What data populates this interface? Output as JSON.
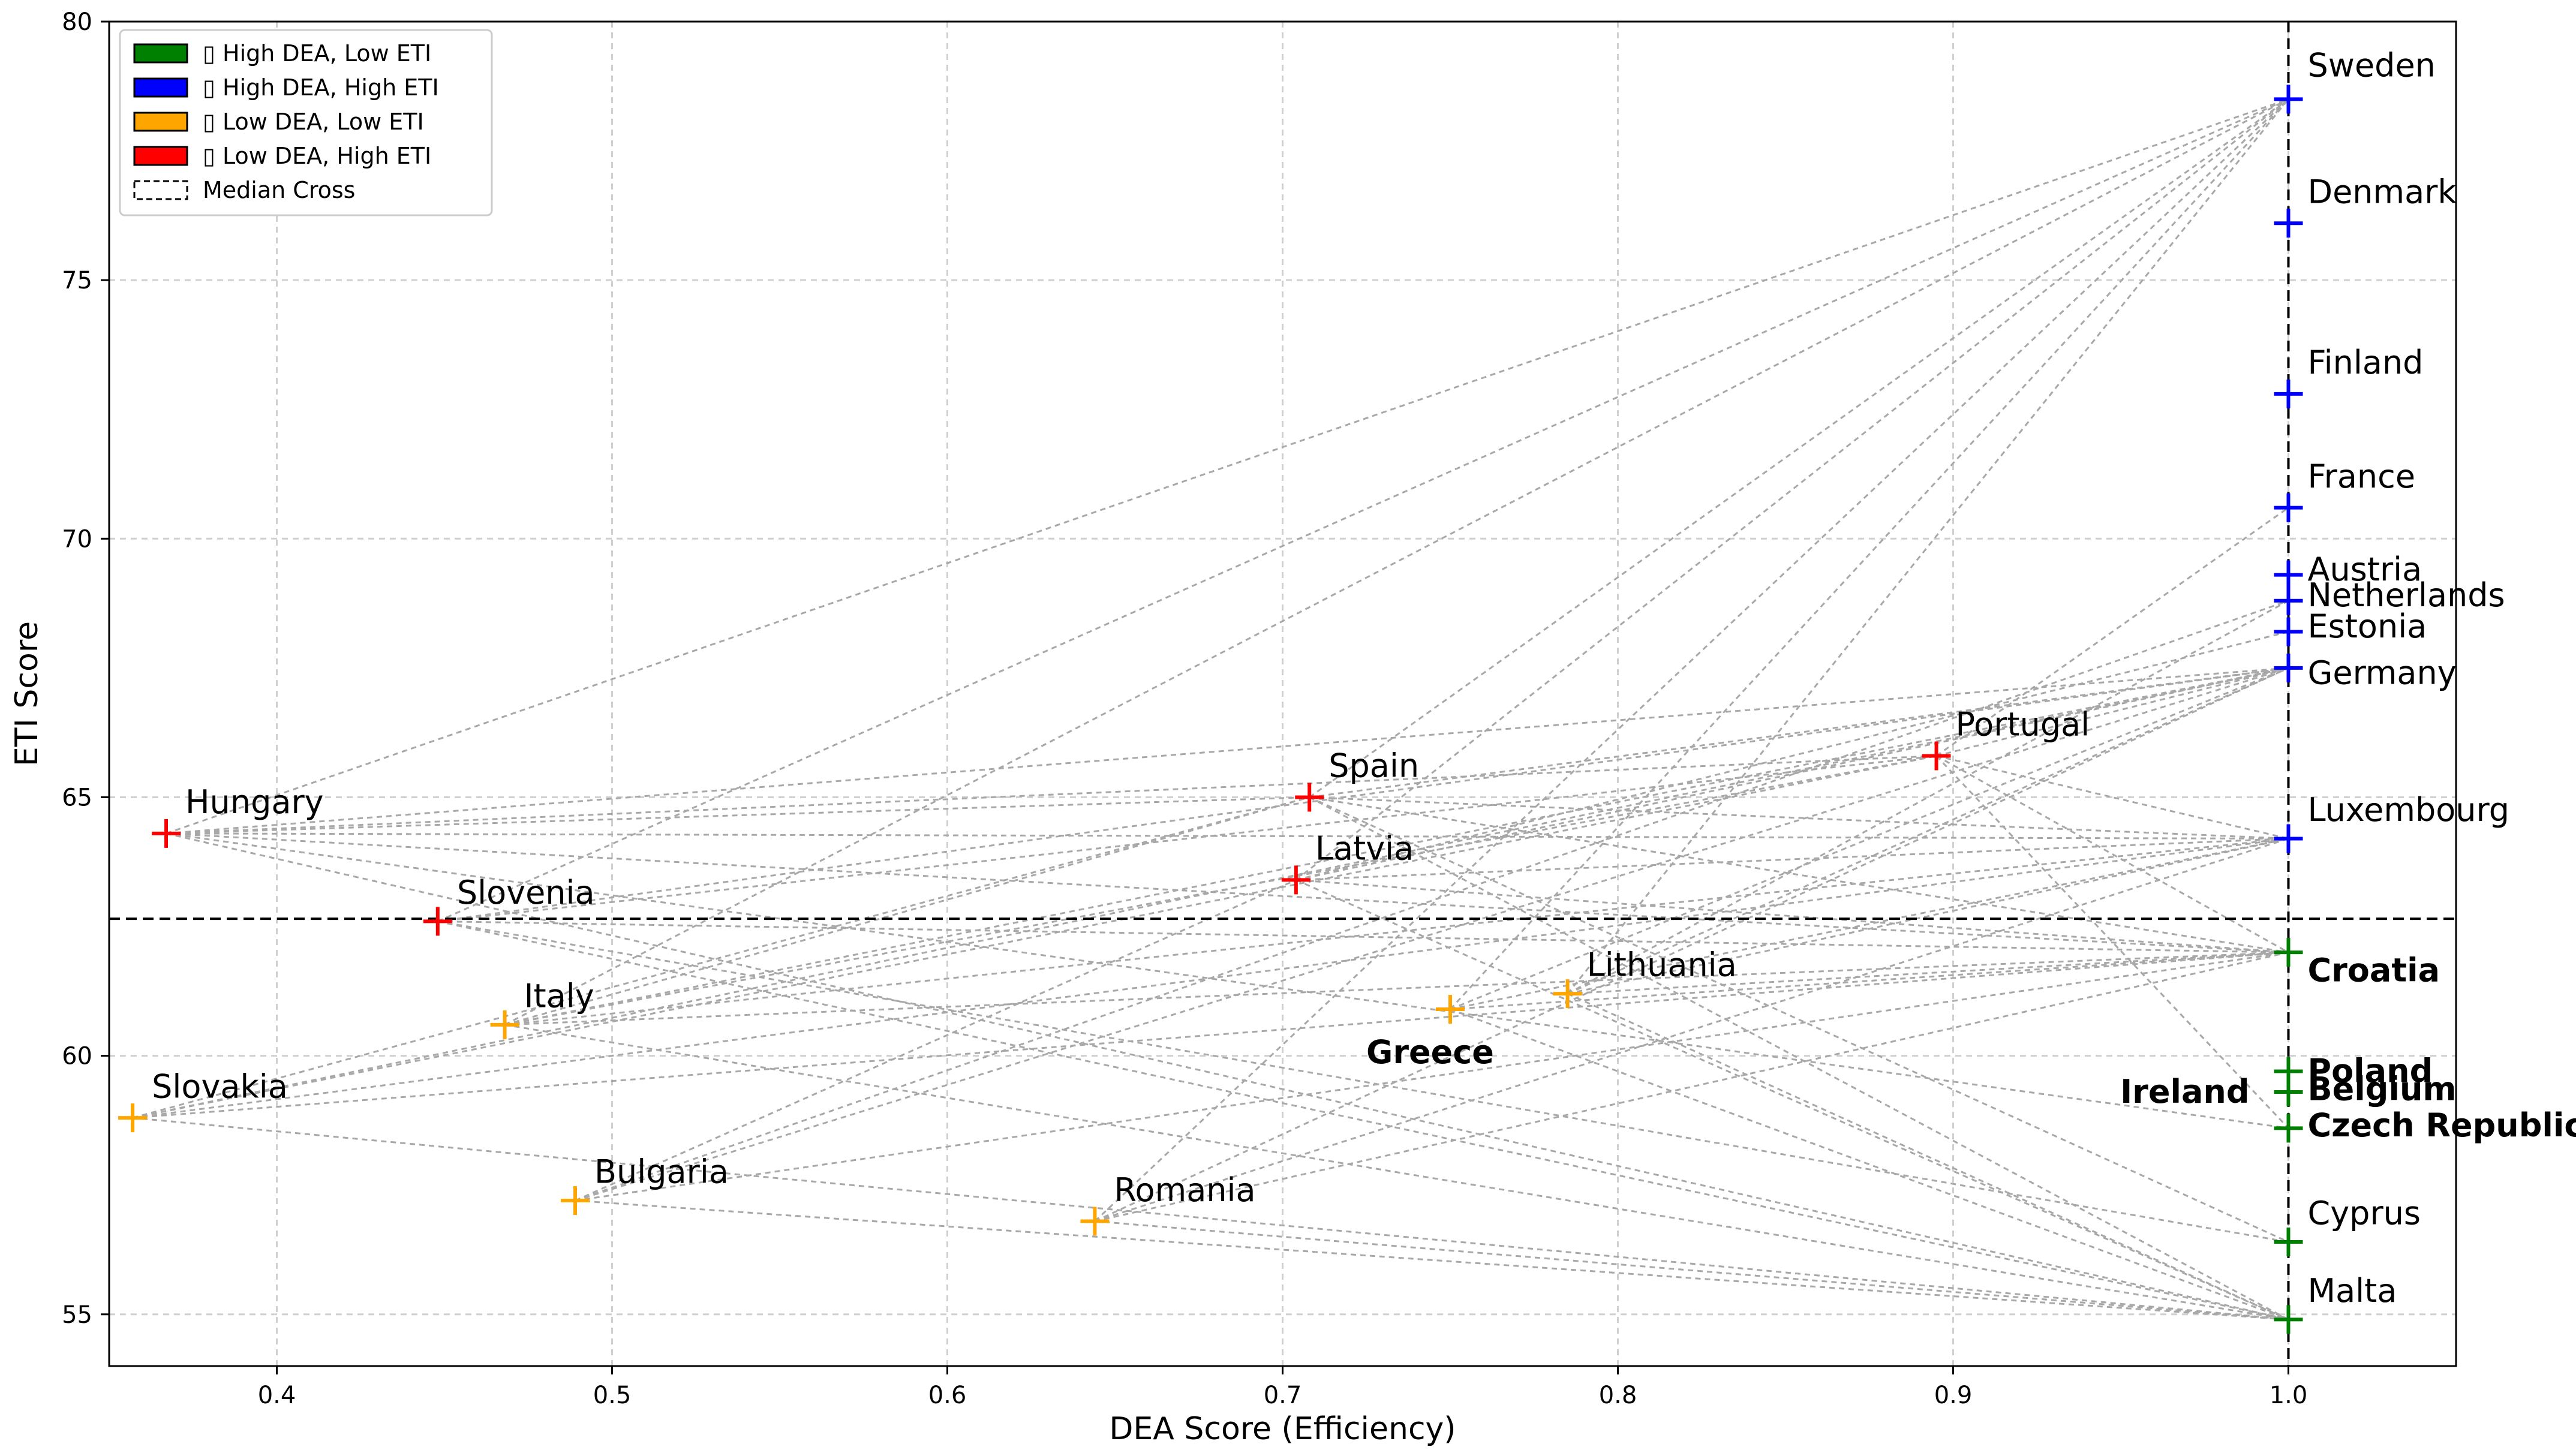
{
  "chart_data": {
    "type": "scatter",
    "title": "",
    "xlabel": "DEA Score (Efficiency)",
    "ylabel": "ETI Score",
    "xlim": [
      0.35,
      1.05
    ],
    "ylim": [
      54.0,
      80.0
    ],
    "xticks": [
      0.4,
      0.5,
      0.6,
      0.7,
      0.8,
      0.9,
      1.0
    ],
    "xtick_labels": [
      "0.4",
      "0.5",
      "0.6",
      "0.7",
      "0.8",
      "0.9",
      "1.0"
    ],
    "yticks": [
      55,
      60,
      65,
      70,
      75,
      80
    ],
    "ytick_labels": [
      "55",
      "60",
      "65",
      "70",
      "75",
      "80"
    ],
    "grid": true,
    "median_cross": {
      "x": 1.0,
      "y": 62.65
    },
    "legend": {
      "placement": "top-left",
      "entries": [
        {
          "key": "high_dea_low_eti",
          "label": "▯ High DEA, Low ETI",
          "color": "#008000"
        },
        {
          "key": "high_dea_high_eti",
          "label": "▯ High DEA, High ETI",
          "color": "#0000ff"
        },
        {
          "key": "low_dea_low_eti",
          "label": "▯ Low DEA, Low ETI",
          "color": "#ffa500"
        },
        {
          "key": "low_dea_high_eti",
          "label": "▯ Low DEA, High ETI",
          "color": "#ff0000"
        },
        {
          "key": "median",
          "label": "Median Cross",
          "color": "#000000"
        }
      ]
    },
    "points": [
      {
        "label": "Sweden",
        "x": 1.0,
        "y": 78.5,
        "group": "high_dea_high_eti",
        "label_side": "right",
        "ldy": -0.65
      },
      {
        "label": "Denmark",
        "x": 1.0,
        "y": 76.1,
        "group": "high_dea_high_eti",
        "label_side": "right",
        "ldy": -0.6
      },
      {
        "label": "Finland",
        "x": 1.0,
        "y": 72.8,
        "group": "high_dea_high_eti",
        "label_side": "right",
        "ldy": -0.6
      },
      {
        "label": "France",
        "x": 1.0,
        "y": 70.6,
        "group": "high_dea_high_eti",
        "label_side": "right",
        "ldy": -0.6
      },
      {
        "label": "Austria",
        "x": 1.0,
        "y": 69.3,
        "group": "high_dea_high_eti",
        "label_side": "right",
        "ldy": -0.1
      },
      {
        "label": "Netherlands",
        "x": 1.0,
        "y": 68.8,
        "group": "high_dea_high_eti",
        "label_side": "right",
        "ldy": -0.1
      },
      {
        "label": "Estonia",
        "x": 1.0,
        "y": 68.2,
        "group": "high_dea_high_eti",
        "label_side": "right",
        "ldy": -0.1
      },
      {
        "label": "Germany",
        "x": 1.0,
        "y": 67.5,
        "group": "high_dea_high_eti",
        "label_side": "right",
        "ldy": 0.1
      },
      {
        "label": "Luxembourg",
        "x": 1.0,
        "y": 64.2,
        "group": "high_dea_high_eti",
        "label_side": "right",
        "ldy": -0.55
      },
      {
        "label": "Croatia",
        "x": 1.0,
        "y": 62.0,
        "group": "high_dea_low_eti",
        "label_side": "right",
        "ldy": 0.35
      },
      {
        "label": "Poland",
        "x": 1.0,
        "y": 59.7,
        "group": "high_dea_low_eti",
        "label_side": "right",
        "ldy": 0.0
      },
      {
        "label": "Belgium",
        "x": 1.0,
        "y": 59.3,
        "group": "high_dea_low_eti",
        "label_side": "right",
        "ldy": -0.05
      },
      {
        "label": "Ireland",
        "x": 1.0,
        "y": 59.3,
        "group": "high_dea_low_eti",
        "label_side": "left",
        "ldy": 0.0
      },
      {
        "label": "Czech Republic",
        "x": 1.0,
        "y": 58.6,
        "group": "high_dea_low_eti",
        "label_side": "right",
        "ldy": -0.05
      },
      {
        "label": "Cyprus",
        "x": 1.0,
        "y": 56.4,
        "group": "high_dea_low_eti",
        "label_side": "right",
        "ldy": -0.55
      },
      {
        "label": "Malta",
        "x": 1.0,
        "y": 54.9,
        "group": "high_dea_low_eti",
        "label_side": "right",
        "ldy": -0.55
      },
      {
        "label": "Portugal",
        "x": 0.895,
        "y": 65.8,
        "group": "low_dea_high_eti",
        "label_side": "right",
        "ldy": -0.6
      },
      {
        "label": "Spain",
        "x": 0.708,
        "y": 65.0,
        "group": "low_dea_high_eti",
        "label_side": "right",
        "ldy": -0.6
      },
      {
        "label": "Latvia",
        "x": 0.704,
        "y": 63.4,
        "group": "low_dea_high_eti",
        "label_side": "right",
        "ldy": -0.6
      },
      {
        "label": "Hungary",
        "x": 0.367,
        "y": 64.3,
        "group": "low_dea_high_eti",
        "label_side": "right",
        "ldy": -0.6
      },
      {
        "label": "Slovenia",
        "x": 0.448,
        "y": 62.6,
        "group": "low_dea_high_eti",
        "label_side": "right",
        "ldy": -0.55
      },
      {
        "label": "Lithuania",
        "x": 0.785,
        "y": 61.2,
        "group": "low_dea_low_eti",
        "label_side": "right",
        "ldy": -0.55
      },
      {
        "label": "Greece",
        "x": 0.75,
        "y": 60.9,
        "group": "low_dea_low_eti",
        "label_side": "below",
        "ldy": 0.85
      },
      {
        "label": "Italy",
        "x": 0.468,
        "y": 60.6,
        "group": "low_dea_low_eti",
        "label_side": "right",
        "ldy": -0.55
      },
      {
        "label": "Slovakia",
        "x": 0.357,
        "y": 58.8,
        "group": "low_dea_low_eti",
        "label_side": "right",
        "ldy": -0.6
      },
      {
        "label": "Bulgaria",
        "x": 0.489,
        "y": 57.2,
        "group": "low_dea_low_eti",
        "label_side": "right",
        "ldy": -0.55
      },
      {
        "label": "Romania",
        "x": 0.644,
        "y": 56.8,
        "group": "low_dea_low_eti",
        "label_side": "right",
        "ldy": -0.6
      }
    ],
    "connections": [
      [
        "Hungary",
        "Sweden"
      ],
      [
        "Hungary",
        "Portugal"
      ],
      [
        "Hungary",
        "Spain"
      ],
      [
        "Hungary",
        "Germany"
      ],
      [
        "Hungary",
        "Luxembourg"
      ],
      [
        "Hungary",
        "Croatia"
      ],
      [
        "Hungary",
        "Czech Republic"
      ],
      [
        "Hungary",
        "Malta"
      ],
      [
        "Slovenia",
        "Sweden"
      ],
      [
        "Slovenia",
        "Portugal"
      ],
      [
        "Slovenia",
        "Germany"
      ],
      [
        "Slovenia",
        "Croatia"
      ],
      [
        "Slovenia",
        "Malta"
      ],
      [
        "Slovenia",
        "Cyprus"
      ],
      [
        "Italy",
        "Sweden"
      ],
      [
        "Italy",
        "Germany"
      ],
      [
        "Italy",
        "Croatia"
      ],
      [
        "Italy",
        "Luxembourg"
      ],
      [
        "Italy",
        "Malta"
      ],
      [
        "Italy",
        "Portugal"
      ],
      [
        "Italy",
        "Spain"
      ],
      [
        "Slovakia",
        "Spain"
      ],
      [
        "Slovakia",
        "Germany"
      ],
      [
        "Slovakia",
        "Croatia"
      ],
      [
        "Slovakia",
        "Luxembourg"
      ],
      [
        "Slovakia",
        "Malta"
      ],
      [
        "Slovakia",
        "Portugal"
      ],
      [
        "Bulgaria",
        "Latvia"
      ],
      [
        "Bulgaria",
        "Germany"
      ],
      [
        "Bulgaria",
        "Croatia"
      ],
      [
        "Bulgaria",
        "Malta"
      ],
      [
        "Bulgaria",
        "Netherlands"
      ],
      [
        "Romania",
        "Sweden"
      ],
      [
        "Romania",
        "Germany"
      ],
      [
        "Romania",
        "Croatia"
      ],
      [
        "Romania",
        "Luxembourg"
      ],
      [
        "Romania",
        "Malta"
      ],
      [
        "Spain",
        "Sweden"
      ],
      [
        "Spain",
        "Germany"
      ],
      [
        "Spain",
        "Luxembourg"
      ],
      [
        "Spain",
        "Croatia"
      ],
      [
        "Spain",
        "Cyprus"
      ],
      [
        "Spain",
        "Malta"
      ],
      [
        "Latvia",
        "Sweden"
      ],
      [
        "Latvia",
        "Germany"
      ],
      [
        "Latvia",
        "Estonia"
      ],
      [
        "Latvia",
        "Luxembourg"
      ],
      [
        "Latvia",
        "Croatia"
      ],
      [
        "Latvia",
        "Malta"
      ],
      [
        "Portugal",
        "France"
      ],
      [
        "Portugal",
        "Germany"
      ],
      [
        "Portugal",
        "Luxembourg"
      ],
      [
        "Portugal",
        "Croatia"
      ],
      [
        "Portugal",
        "Czech Republic"
      ],
      [
        "Lithuania",
        "Sweden"
      ],
      [
        "Lithuania",
        "Germany"
      ],
      [
        "Lithuania",
        "Luxembourg"
      ],
      [
        "Lithuania",
        "Croatia"
      ],
      [
        "Lithuania",
        "Malta"
      ],
      [
        "Lithuania",
        "Netherlands"
      ],
      [
        "Greece",
        "Sweden"
      ],
      [
        "Greece",
        "Germany"
      ],
      [
        "Greece",
        "Croatia"
      ],
      [
        "Greece",
        "Malta"
      ],
      [
        "Greece",
        "Luxembourg"
      ]
    ]
  }
}
